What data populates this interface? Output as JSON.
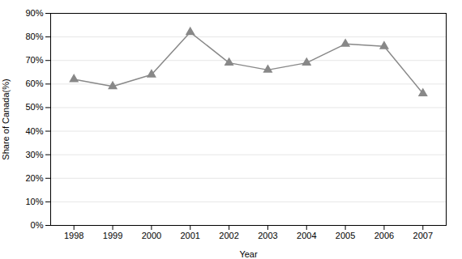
{
  "chart_data": {
    "type": "line",
    "xlabel": "Year",
    "ylabel": "Share of Canada(%)",
    "x": [
      1998,
      1999,
      2000,
      2001,
      2002,
      2003,
      2004,
      2005,
      2006,
      2007
    ],
    "values": [
      62,
      59,
      64,
      82,
      69,
      66,
      69,
      77,
      76,
      56
    ],
    "color": "#888888",
    "marker": "triangle",
    "xlim": [
      1997.4,
      2007.6
    ],
    "xticks": [
      1998,
      1999,
      2000,
      2001,
      2002,
      2003,
      2004,
      2005,
      2006,
      2007
    ],
    "ylim": [
      0,
      90
    ],
    "yticks": [
      {
        "value": 0,
        "label": "0%"
      },
      {
        "value": 10,
        "label": "10%"
      },
      {
        "value": 20,
        "label": "20%"
      },
      {
        "value": 30,
        "label": "30%"
      },
      {
        "value": 40,
        "label": "40%"
      },
      {
        "value": 50,
        "label": "50%"
      },
      {
        "value": 60,
        "label": "60%"
      },
      {
        "value": 70,
        "label": "70%"
      },
      {
        "value": 80,
        "label": "80%"
      },
      {
        "value": 90,
        "label": "90%"
      }
    ],
    "grid": true
  }
}
